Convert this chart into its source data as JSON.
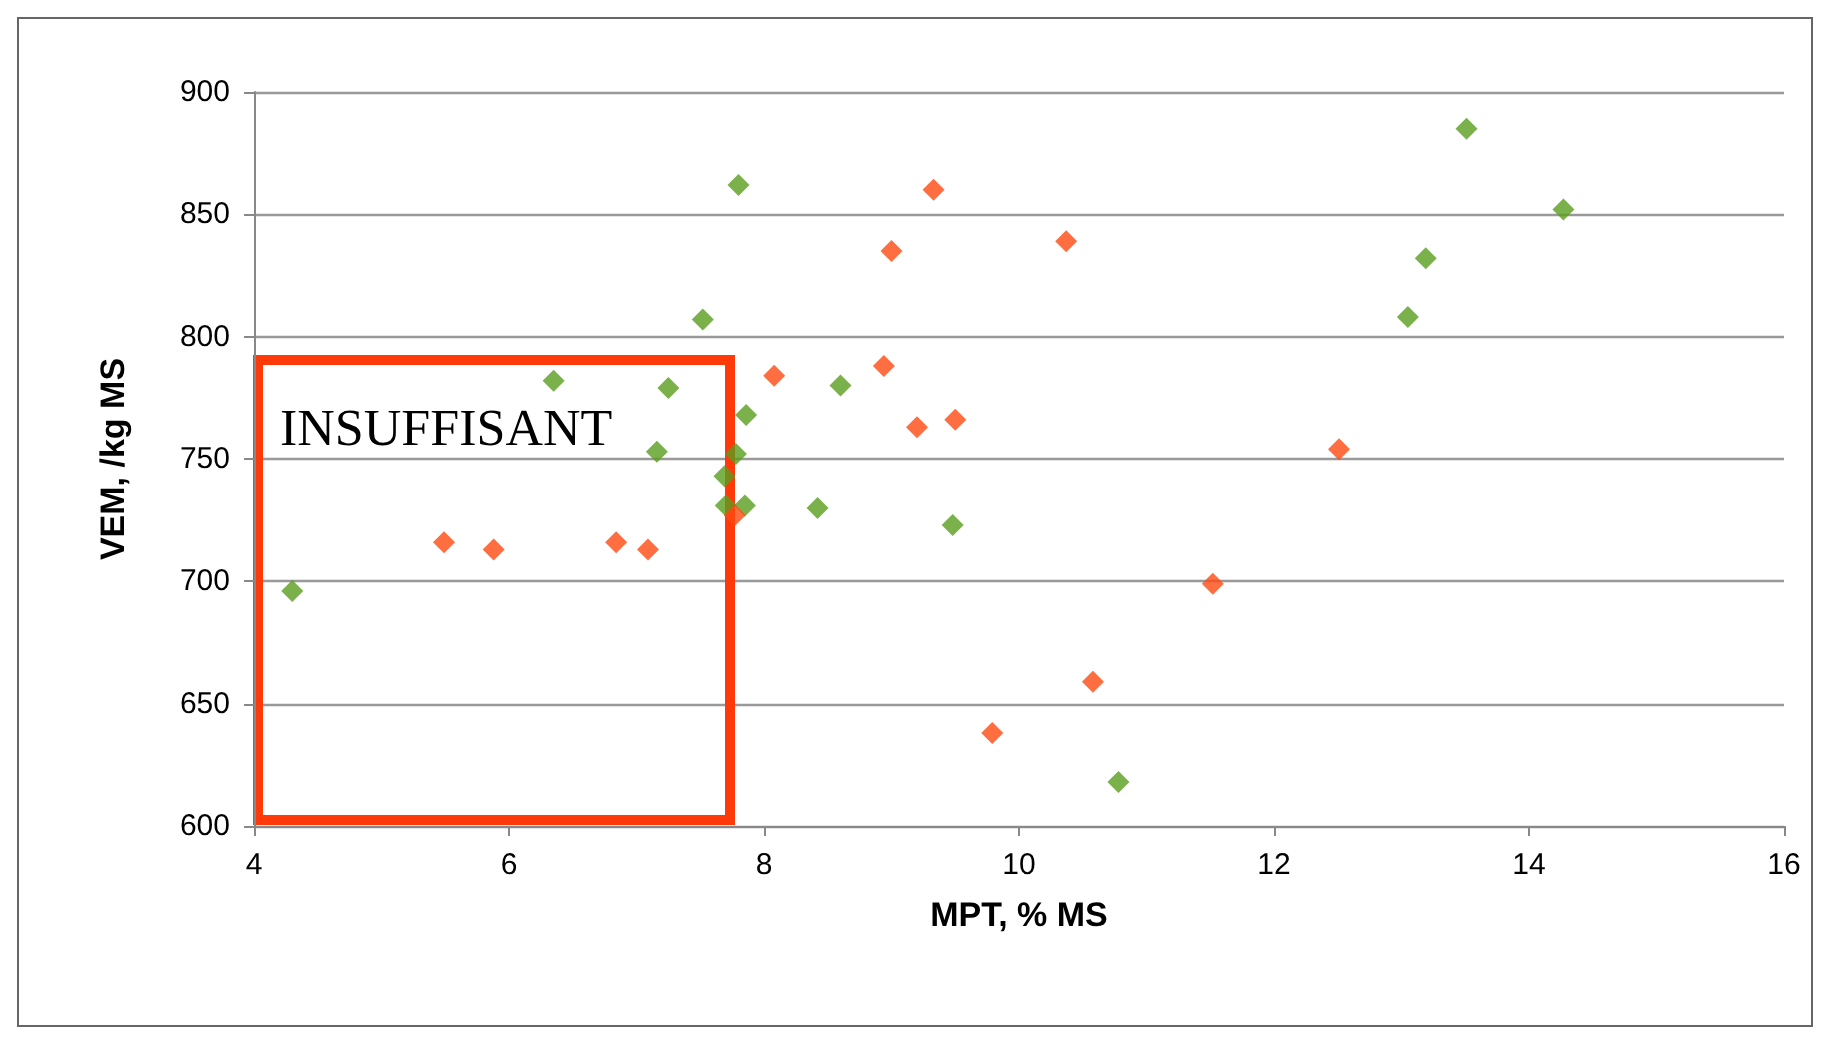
{
  "chart_data": {
    "type": "scatter",
    "xlabel": "MPT, % MS",
    "ylabel": "VEM, /kg MS",
    "series": [
      {
        "color": "#5a9e1e",
        "x": [
          4.3,
          6.35,
          7.25,
          7.16,
          7.52,
          7.8,
          7.86,
          7.78,
          7.69,
          7.7,
          7.85,
          8.6,
          8.42,
          9.48,
          10.78,
          13.51,
          14.27,
          13.19,
          13.05
        ],
        "values": [
          696,
          782,
          779,
          753,
          807,
          862,
          768,
          752,
          743,
          731,
          731,
          780,
          730,
          723,
          618,
          885,
          852,
          832,
          808
        ]
      },
      {
        "color": "#ff4a12",
        "x": [
          5.49,
          5.88,
          6.84,
          7.09,
          7.77,
          8.08,
          8.94,
          9.2,
          9.5,
          10.58,
          9.79,
          9.33,
          9.0,
          10.37,
          12.51,
          11.52
        ],
        "values": [
          716,
          713,
          716,
          713,
          727,
          784,
          788,
          763,
          766,
          659,
          638,
          860,
          835,
          839,
          754,
          699
        ]
      }
    ],
    "xlim": [
      4,
      16
    ],
    "xticks": [
      4,
      6,
      8,
      10,
      12,
      14,
      16
    ],
    "ylim": [
      600,
      900
    ],
    "yticks": [
      600,
      650,
      700,
      750,
      800,
      850,
      900
    ],
    "grid": "y",
    "marker": "diamond",
    "annotations": [
      "INSUFFISANT"
    ]
  }
}
